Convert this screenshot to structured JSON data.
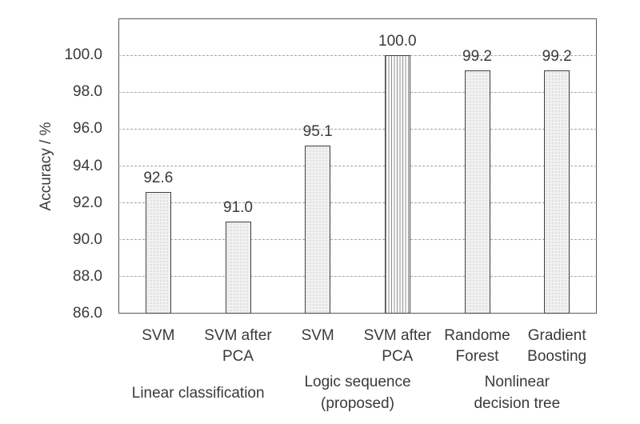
{
  "chart_data": {
    "type": "bar",
    "title": "",
    "ylabel": "Accuracy / %",
    "ylim": [
      86,
      102
    ],
    "yticks": [
      86,
      88,
      90,
      92,
      94,
      96,
      98,
      100
    ],
    "ytick_labels": [
      "86.0",
      "88.0",
      "90.0",
      "92.0",
      "94.0",
      "96.0",
      "98.0",
      "100.0"
    ],
    "grid": "horizontal-dashed",
    "legend": "none",
    "categories": [
      "SVM",
      "SVM after PCA",
      "SVM",
      "SVM after PCA",
      "Randome Forest",
      "Gradient Boosting"
    ],
    "values": [
      92.6,
      91.0,
      95.1,
      100.0,
      99.2,
      99.2
    ],
    "bars": [
      {
        "category_lines": [
          "SVM"
        ],
        "value": 92.6,
        "label": "92.6",
        "fill": "dotted"
      },
      {
        "category_lines": [
          "SVM after",
          "PCA"
        ],
        "value": 91.0,
        "label": "91.0",
        "fill": "dotted"
      },
      {
        "category_lines": [
          "SVM"
        ],
        "value": 95.1,
        "label": "95.1",
        "fill": "dotted"
      },
      {
        "category_lines": [
          "SVM after",
          "PCA"
        ],
        "value": 100.0,
        "label": "100.0",
        "fill": "vertical-hatch"
      },
      {
        "category_lines": [
          "Randome",
          "Forest"
        ],
        "value": 99.2,
        "label": "99.2",
        "fill": "dotted"
      },
      {
        "category_lines": [
          "Gradient",
          "Boosting"
        ],
        "value": 99.2,
        "label": "99.2",
        "fill": "dotted"
      }
    ],
    "groups": [
      {
        "lines": [
          "Linear classification"
        ],
        "span": [
          0,
          1
        ]
      },
      {
        "lines": [
          "Logic sequence",
          "(proposed)"
        ],
        "span": [
          2,
          3
        ]
      },
      {
        "lines": [
          "Nonlinear",
          "decision tree"
        ],
        "span": [
          4,
          5
        ]
      }
    ],
    "colors": {
      "bar_fill": "#f1f1f1",
      "bar_border": "#404040",
      "hatch_line": "#8c8c8c",
      "gridline": "#a6a6a6",
      "axis_border": "#595959",
      "text": "#3a3a3a",
      "background": "#ffffff"
    }
  }
}
